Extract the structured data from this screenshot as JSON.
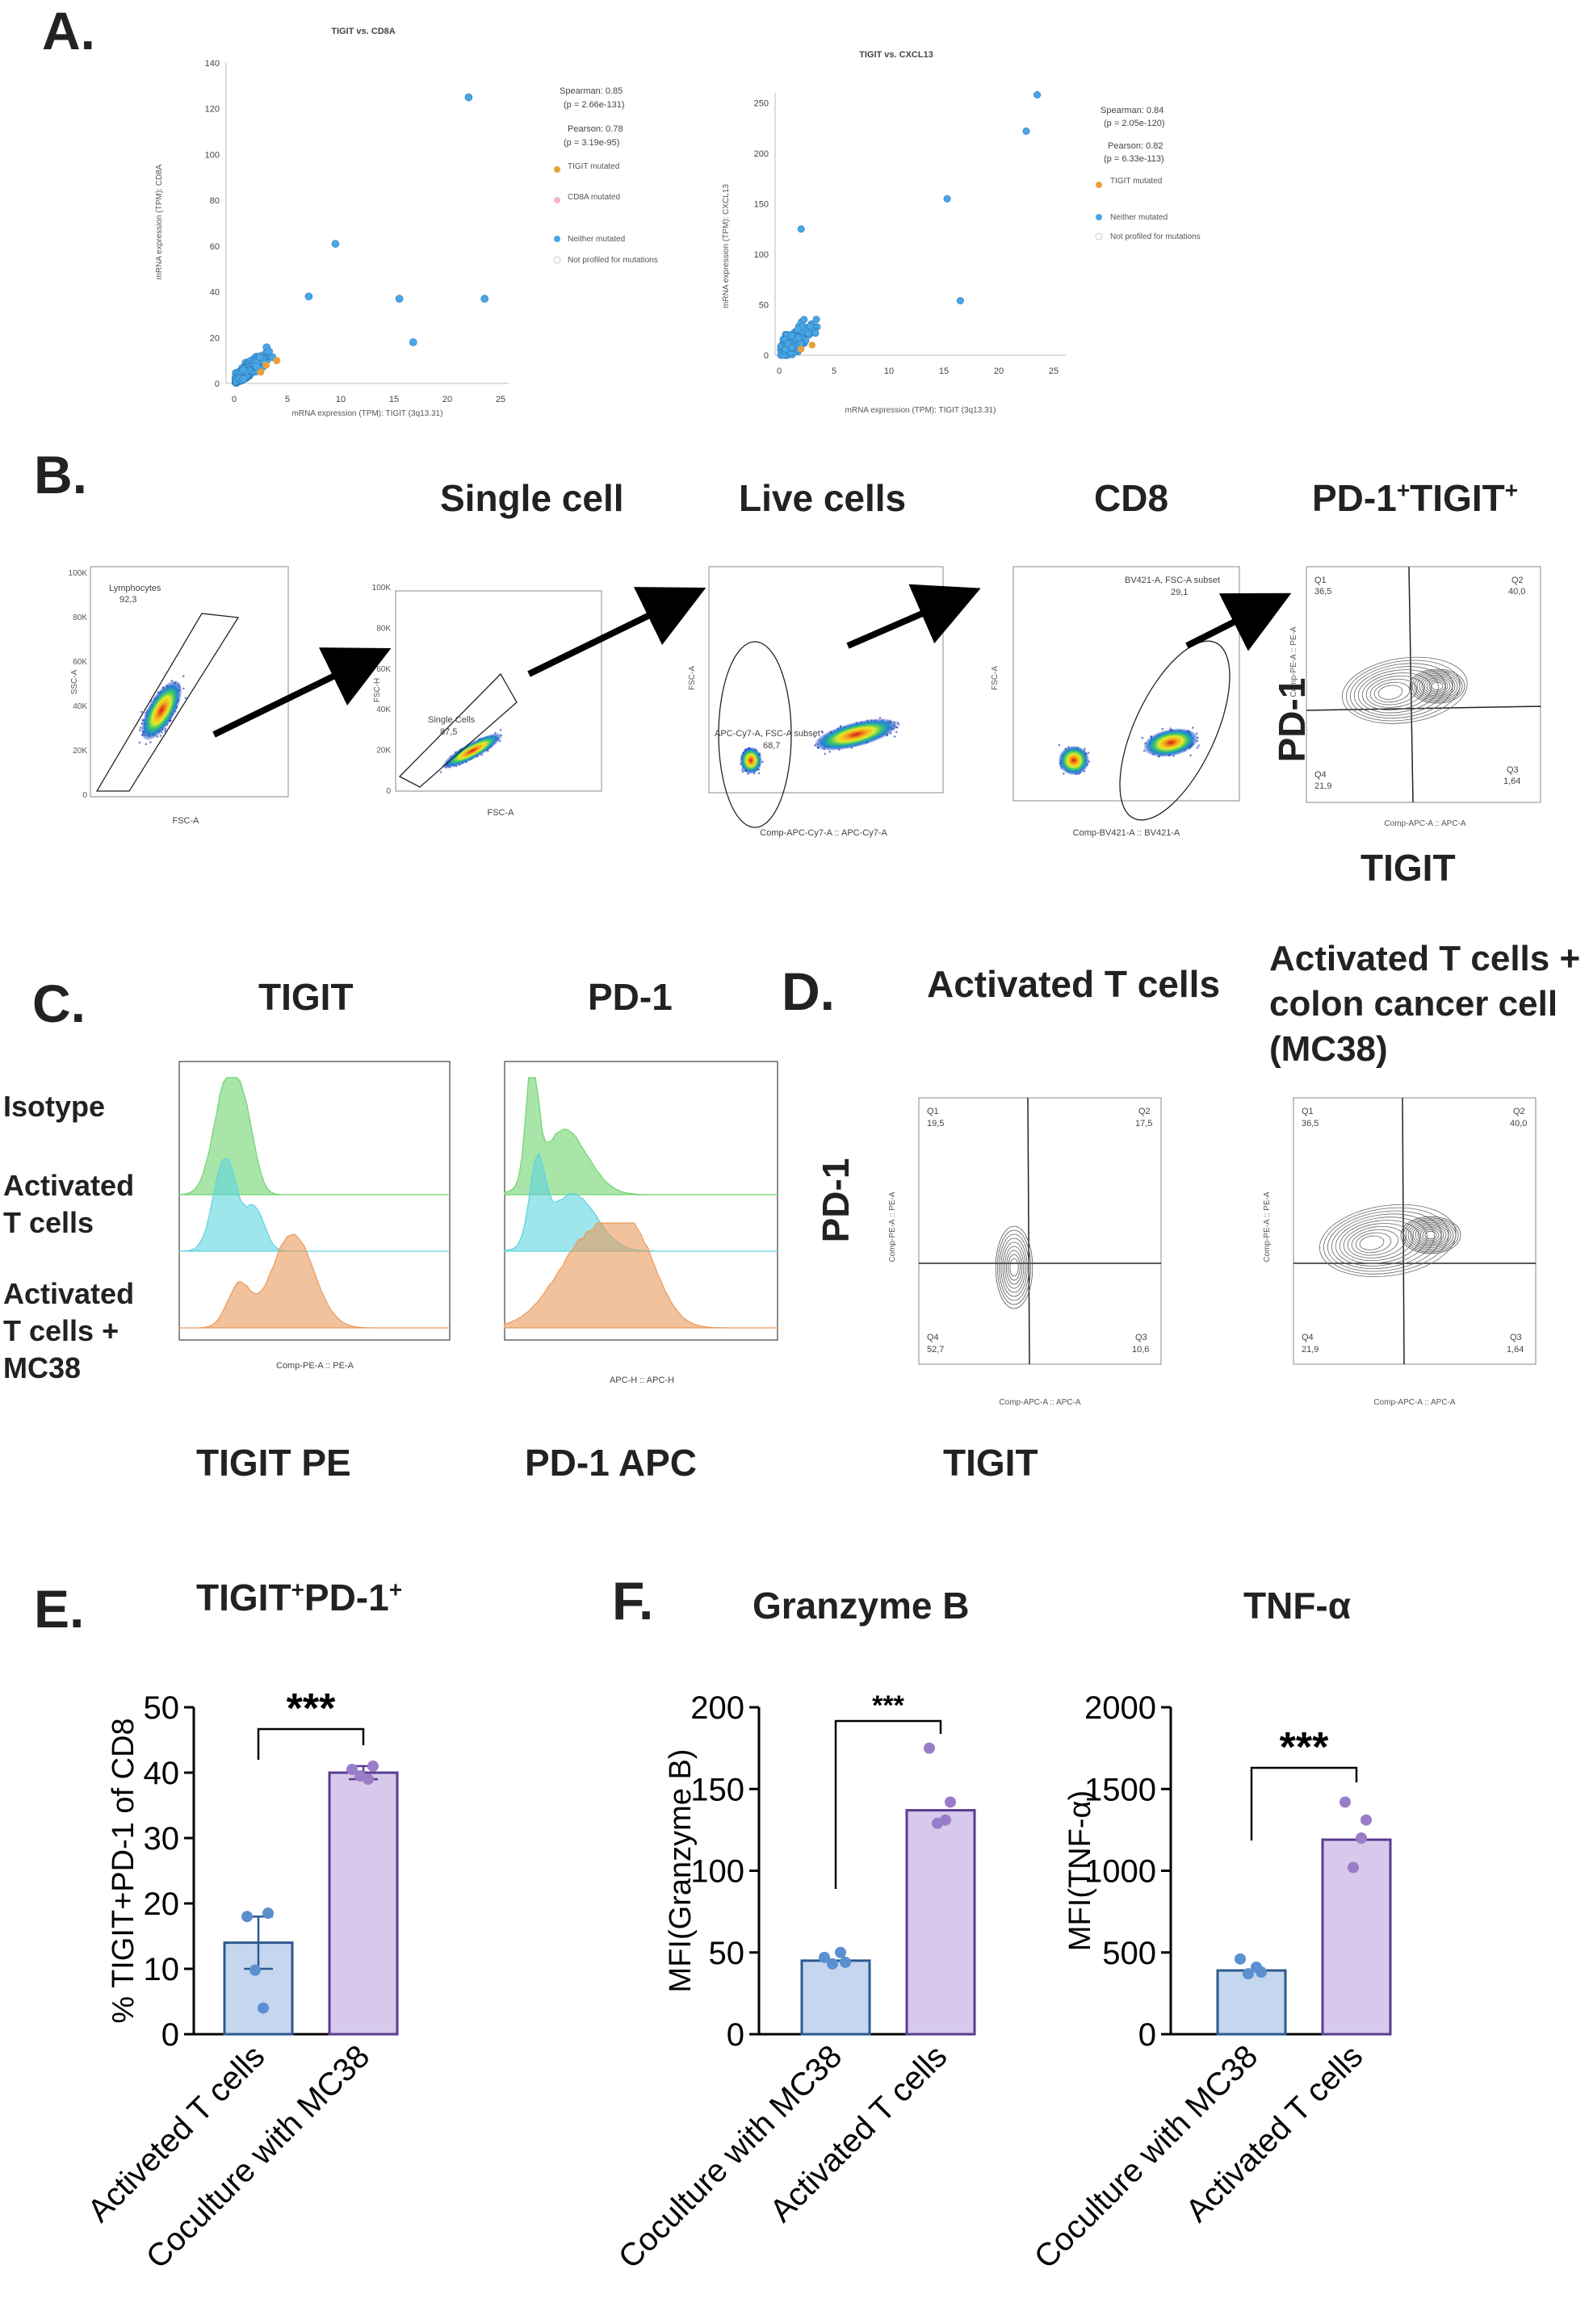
{
  "panels": {
    "A": "A.",
    "B": "B.",
    "C": "C.",
    "D": "D.",
    "E": "E.",
    "F": "F."
  },
  "panelA": {
    "left": {
      "title": "TIGIT vs. CD8A",
      "xlabel": "mRNA expression (TPM): TIGIT (3q13.31)",
      "ylabel": "mRNA expression (TPM): CD8A",
      "spearman": "Spearman: 0.85",
      "spearman_p": "(p = 2.66e-131)",
      "pearson": "Pearson: 0.78",
      "pearson_p": "(p = 3.19e-95)",
      "legend": [
        "TIGIT mutated",
        "CD8A mutated",
        "Neither mutated",
        "Not profiled for mutations"
      ]
    },
    "right": {
      "title": "TIGIT vs. CXCL13",
      "xlabel": "mRNA expression (TPM): TIGIT (3q13.31)",
      "ylabel": "mRNA expression (TPM): CXCL13",
      "spearman": "Spearman: 0.84",
      "spearman_p": "(p = 2.05e-120)",
      "pearson": "Pearson: 0.82",
      "pearson_p": "(p = 6.33e-113)",
      "legend": [
        "TIGIT mutated",
        "Neither mutated",
        "Not profiled for mutations"
      ]
    }
  },
  "panelB": {
    "titles": [
      "Single cell",
      "Live cells",
      "CD8",
      "PD-1+TIGIT+"
    ],
    "gates": {
      "lymph": "Lymphocytes",
      "lymph_val": "92,3",
      "single": "Single Cells",
      "single_val": "87,5",
      "live": "APC-Cy7-A, FSC-A subset",
      "live_val": "68,7",
      "cd8": "BV421-A, FSC-A subset",
      "cd8_val": "29,1"
    },
    "axes": {
      "p1x": "FSC-A",
      "p1y": "SSC-A",
      "p2x": "FSC-A",
      "p2y": "FSC-H",
      "p3x": "Comp-APC-Cy7-A :: APC-Cy7-A",
      "p3y": "FSC-A",
      "p4x": "Comp-BV421-A :: BV421-A",
      "p4y": "FSC-A",
      "p5x": "Comp-APC-A :: APC-A",
      "p5y": "Comp-PE-A :: PE-A"
    },
    "quad": {
      "q1": "Q1",
      "q1v": "36,5",
      "q2": "Q2",
      "q2v": "40,0",
      "q3": "Q3",
      "q3v": "1,64",
      "q4": "Q4",
      "q4v": "21,9"
    },
    "side_y": "PD-1",
    "side_x": "TIGIT"
  },
  "panelC": {
    "titles": [
      "TIGIT",
      "PD-1"
    ],
    "rows": [
      "Isotype",
      "Activated T cells",
      "Activated T cells + MC38"
    ],
    "axis1": "Comp-PE-A :: PE-A",
    "axis2": "APC-H :: APC-H",
    "bottom1": "TIGIT PE",
    "bottom2": "PD-1 APC"
  },
  "panelD": {
    "title1": "Activated T cells",
    "title2_l1": "Activated T cells +",
    "title2_l2": "colon cancer cell",
    "title2_l3": "(MC38)",
    "ylabel": "PD-1",
    "xlabel": "TIGIT",
    "axis_x": "Comp-APC-A :: APC-A",
    "axis_y": "Comp-PE-A :: PE-A",
    "quad1": {
      "q1": "Q1",
      "q1v": "19,5",
      "q2": "Q2",
      "q2v": "17,5",
      "q3": "Q3",
      "q3v": "10,6",
      "q4": "Q4",
      "q4v": "52,7"
    },
    "quad2": {
      "q1": "Q1",
      "q1v": "36,5",
      "q2": "Q2",
      "q2v": "40,0",
      "q3": "Q3",
      "q3v": "1,64",
      "q4": "Q4",
      "q4v": "21,9"
    }
  },
  "panelE": {
    "title": "TIGIT+PD-1+",
    "sig": "***"
  },
  "panelF": {
    "title1": "Granzyme B",
    "title2": "TNF-α",
    "sig1": "***",
    "sig2": "***"
  },
  "colors": {
    "blue_bar": "#c4d7ee",
    "blue_edge": "#2c5a8f",
    "purple_bar": "#d6c9ec",
    "purple_edge": "#5a3c8f",
    "dot_blue": "#5b8fd0",
    "dot_purple": "#9a7dc8",
    "green": "#6fd46f",
    "cyan": "#5fd3e0",
    "orange": "#e99a5c"
  },
  "chart_data": [
    {
      "type": "bar",
      "title": "TIGIT+PD-1+",
      "ylabel": "% TIGIT+PD-1 of CD8",
      "categories": [
        "Activeted T cells",
        "Coculture with MC38"
      ],
      "values": [
        14,
        40
      ],
      "errors": [
        4,
        1
      ],
      "points": [
        [
          18,
          18.5,
          9.8,
          4
        ],
        [
          40.5,
          41,
          39.5,
          39
        ]
      ],
      "ylim": [
        0,
        50
      ],
      "yticks": [
        0,
        10,
        20,
        30,
        40,
        50
      ],
      "significance": "***"
    },
    {
      "type": "bar",
      "title": "Granzyme B",
      "ylabel": "MFI(Granzyme B)",
      "categories": [
        "Coculture with MC38",
        "Activated T cells"
      ],
      "values": [
        45,
        137
      ],
      "points": [
        [
          47,
          44,
          43,
          50
        ],
        [
          175,
          142,
          129,
          131
        ]
      ],
      "ylim": [
        0,
        200
      ],
      "yticks": [
        0,
        50,
        100,
        150,
        200
      ],
      "significance": "***"
    },
    {
      "type": "bar",
      "title": "TNF-α",
      "ylabel": "MFI(TNF-α)",
      "categories": [
        "Coculture with MC38",
        "Activated T cells"
      ],
      "values": [
        390,
        1190
      ],
      "points": [
        [
          460,
          380,
          370,
          410
        ],
        [
          1420,
          1310,
          1020,
          1200
        ]
      ],
      "ylim": [
        0,
        2000
      ],
      "yticks": [
        0,
        500,
        1000,
        1500,
        2000
      ],
      "significance": "***"
    }
  ]
}
